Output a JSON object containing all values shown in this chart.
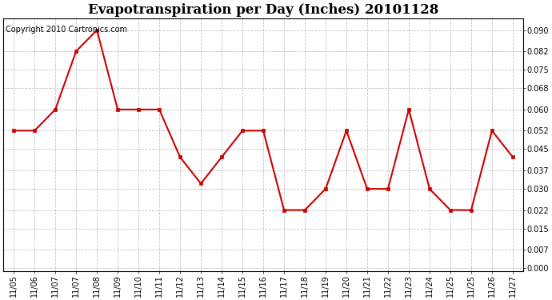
{
  "title": "Evapotranspiration per Day (Inches) 20101128",
  "copyright": "Copyright 2010 Cartronics.com",
  "x_tick_labels": [
    "11/05",
    "11/06",
    "11/07",
    "11/07",
    "11/08",
    "11/09",
    "11/10",
    "11/11",
    "11/12",
    "11/13",
    "11/14",
    "11/15",
    "11/16",
    "11/17",
    "11/18",
    "11/19",
    "11/20",
    "11/21",
    "11/22",
    "11/23",
    "11/24",
    "11/25",
    "11/25",
    "11/26",
    "11/27"
  ],
  "values": [
    0.052,
    0.052,
    0.06,
    0.082,
    0.09,
    0.06,
    0.06,
    0.06,
    0.042,
    0.032,
    0.042,
    0.052,
    0.052,
    0.022,
    0.022,
    0.03,
    0.052,
    0.03,
    0.03,
    0.06,
    0.03,
    0.022,
    0.022,
    0.052,
    0.042
  ],
  "y_ticks": [
    0.0,
    0.007,
    0.015,
    0.022,
    0.03,
    0.037,
    0.045,
    0.052,
    0.06,
    0.068,
    0.075,
    0.082,
    0.09
  ],
  "line_color": "#CC0000",
  "marker": "s",
  "marker_size": 3,
  "bg_color": "#FFFFFF",
  "plot_bg_color": "#FFFFFF",
  "grid_color": "#BBBBBB",
  "title_fontsize": 12,
  "copyright_fontsize": 7,
  "tick_fontsize": 7,
  "ylim_min": -0.001,
  "ylim_max": 0.0945
}
